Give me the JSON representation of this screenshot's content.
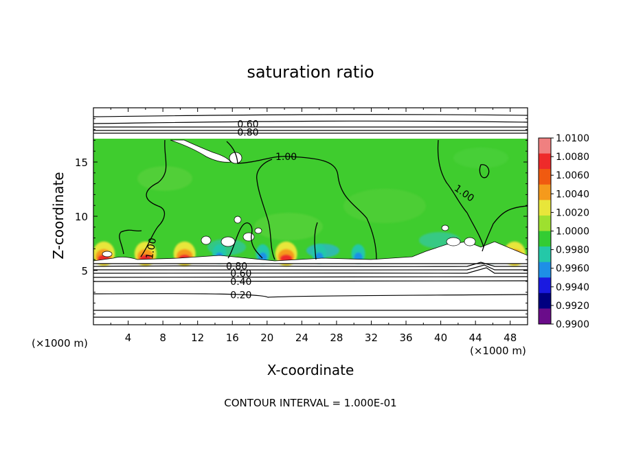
{
  "chart_data": {
    "type": "heatmap",
    "title": "saturation ratio",
    "xlabel": "X-coordinate",
    "ylabel": "Z-coordinate",
    "x_unit_label": "(×1000 m)",
    "z_unit_label": "(×1000 m)",
    "xlim": [
      0,
      50
    ],
    "ylim": [
      0,
      20
    ],
    "x_ticks": [
      "4",
      "8",
      "12",
      "16",
      "20",
      "24",
      "28",
      "32",
      "36",
      "40",
      "44",
      "48"
    ],
    "y_ticks": [
      "5",
      "10",
      "15"
    ],
    "footer": "CONTOUR INTERVAL = 1.000E-01",
    "colorbar": {
      "labels": [
        "1.0100",
        "1.0080",
        "1.0060",
        "1.0040",
        "1.0020",
        "1.0000",
        "0.9980",
        "0.9960",
        "0.9940",
        "0.9920",
        "0.9900"
      ],
      "colors": [
        "#f08080",
        "#ee2a2a",
        "#f05a10",
        "#f59a1c",
        "#e8e63a",
        "#9ee02f",
        "#33cc33",
        "#24c8a8",
        "#1e8fe6",
        "#1a1ae0",
        "#000080",
        "#6a0c8a"
      ]
    },
    "contour_labels": [
      {
        "text": "0.60",
        "x": 17.8,
        "z": 18.5
      },
      {
        "text": "0.80",
        "x": 17.8,
        "z": 17.75
      },
      {
        "text": "1.00",
        "x": 22.2,
        "z": 15.5
      },
      {
        "text": "1.00",
        "x": 42.5,
        "z": 12.2
      },
      {
        "text": "1.00",
        "x": 7.0,
        "z": 7.3
      },
      {
        "text": "0.80",
        "x": 16.5,
        "z": 5.4
      },
      {
        "text": "0.60",
        "x": 17.0,
        "z": 4.75
      },
      {
        "text": "0.40",
        "x": 17.0,
        "z": 4.0
      },
      {
        "text": "0.20",
        "x": 17.0,
        "z": 2.75
      }
    ],
    "hot_spots_x": [
      1.2,
      6.0,
      10.5,
      22.2,
      48.5
    ],
    "cool_spots_x": [
      14.5,
      19.5,
      26.0,
      30.5,
      46.0
    ]
  }
}
